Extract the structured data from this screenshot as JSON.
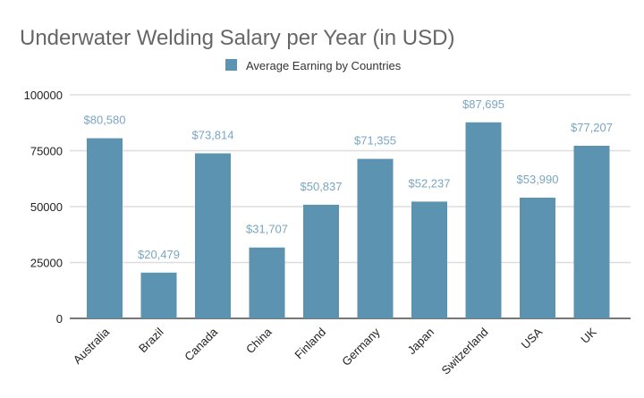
{
  "chart_data": {
    "type": "bar",
    "title": "Underwater Welding Salary per Year (in USD)",
    "xlabel": "",
    "ylabel": "",
    "legend": {
      "position": "top",
      "entries": [
        "Average Earning by Countries"
      ]
    },
    "categories": [
      "Australia",
      "Brazil",
      "Canada",
      "China",
      "Finland",
      "Germany",
      "Japan",
      "Switzerland",
      "USA",
      "UK"
    ],
    "series": [
      {
        "name": "Average Earning by Countries",
        "values": [
          80580,
          20479,
          73814,
          31707,
          50837,
          71355,
          52237,
          87695,
          53990,
          77207
        ],
        "labels": [
          "$80,580",
          "$20,479",
          "$73,814",
          "$31,707",
          "$50,837",
          "$71,355",
          "$52,237",
          "$87,695",
          "$53,990",
          "$77,207"
        ],
        "color": "#5b93b1"
      }
    ],
    "ylim": [
      0,
      100000
    ],
    "yticks": [
      0,
      25000,
      50000,
      75000,
      100000
    ],
    "ytick_labels": [
      "0",
      "25000",
      "50000",
      "75000",
      "100000"
    ],
    "grid": true
  }
}
